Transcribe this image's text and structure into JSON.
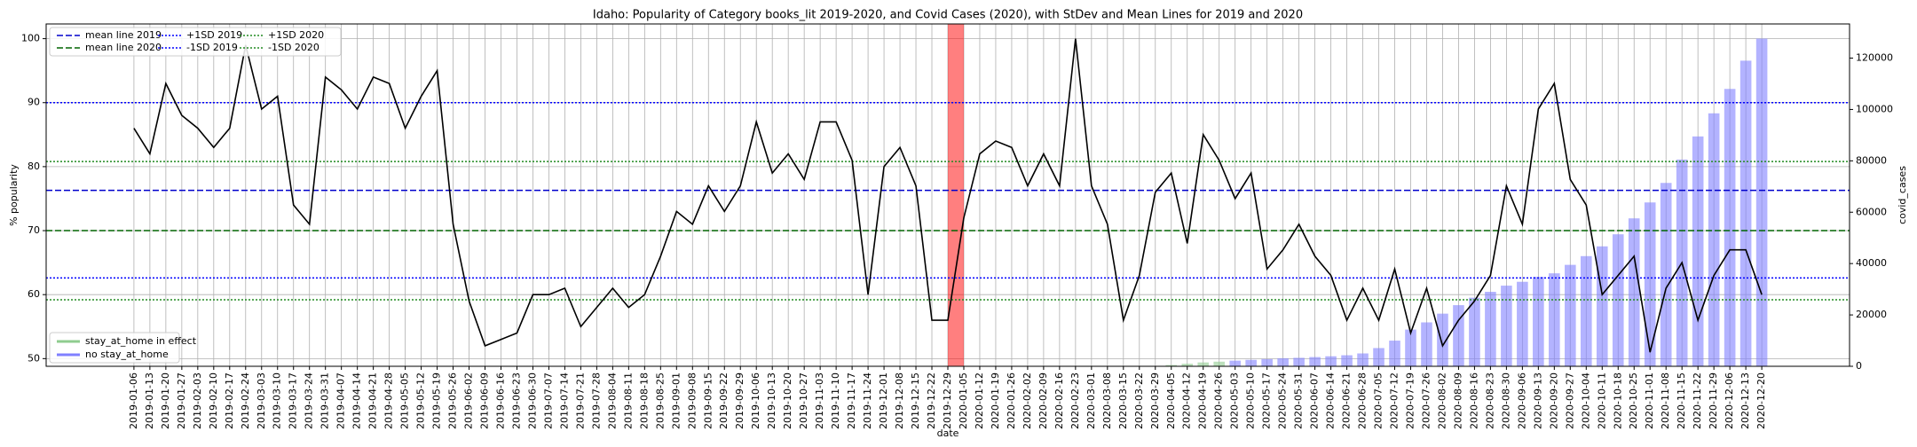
{
  "chart_data": {
    "type": "line",
    "title": "Idaho: Popularity of Category books_lit 2019-2020, and Covid Cases (2020), with StDev and Mean Lines for 2019 and 2020",
    "xlabel": "date",
    "ylabel": "% popularity",
    "y2label": "covid_cases",
    "categories": [
      "2019-01-06",
      "2019-01-13",
      "2019-01-20",
      "2019-01-27",
      "2019-02-03",
      "2019-02-10",
      "2019-02-17",
      "2019-02-24",
      "2019-03-03",
      "2019-03-10",
      "2019-03-17",
      "2019-03-24",
      "2019-03-31",
      "2019-04-07",
      "2019-04-14",
      "2019-04-21",
      "2019-04-28",
      "2019-05-05",
      "2019-05-12",
      "2019-05-19",
      "2019-05-26",
      "2019-06-02",
      "2019-06-09",
      "2019-06-16",
      "2019-06-23",
      "2019-06-30",
      "2019-07-07",
      "2019-07-14",
      "2019-07-21",
      "2019-07-28",
      "2019-08-04",
      "2019-08-11",
      "2019-08-18",
      "2019-08-25",
      "2019-09-01",
      "2019-09-08",
      "2019-09-15",
      "2019-09-22",
      "2019-09-29",
      "2019-10-06",
      "2019-10-13",
      "2019-10-20",
      "2019-10-27",
      "2019-11-03",
      "2019-11-10",
      "2019-11-17",
      "2019-11-24",
      "2019-12-01",
      "2019-12-08",
      "2019-12-15",
      "2019-12-22",
      "2019-12-29",
      "2020-01-05",
      "2020-01-12",
      "2020-01-19",
      "2020-01-26",
      "2020-02-02",
      "2020-02-09",
      "2020-02-16",
      "2020-02-23",
      "2020-03-01",
      "2020-03-08",
      "2020-03-15",
      "2020-03-22",
      "2020-03-29",
      "2020-04-05",
      "2020-04-12",
      "2020-04-19",
      "2020-04-26",
      "2020-05-03",
      "2020-05-10",
      "2020-05-17",
      "2020-05-24",
      "2020-05-31",
      "2020-06-07",
      "2020-06-14",
      "2020-06-21",
      "2020-06-28",
      "2020-07-05",
      "2020-07-12",
      "2020-07-19",
      "2020-07-26",
      "2020-08-02",
      "2020-08-09",
      "2020-08-16",
      "2020-08-23",
      "2020-08-30",
      "2020-09-06",
      "2020-09-13",
      "2020-09-20",
      "2020-09-27",
      "2020-10-04",
      "2020-10-11",
      "2020-10-18",
      "2020-10-25",
      "2020-11-01",
      "2020-11-08",
      "2020-11-15",
      "2020-11-22",
      "2020-11-29",
      "2020-12-06",
      "2020-12-13",
      "2020-12-20"
    ],
    "series": [
      {
        "type": "line",
        "color": "#000000",
        "values": [
          86,
          82,
          93,
          88,
          86,
          83,
          86,
          99,
          89,
          91,
          74,
          71,
          94,
          92,
          89,
          94,
          93,
          86,
          91,
          95,
          71,
          59,
          52,
          53,
          54,
          60,
          60,
          61,
          55,
          58,
          61,
          58,
          60,
          66,
          73,
          71,
          77,
          73,
          77,
          87,
          79,
          82,
          78,
          87,
          87,
          81,
          60,
          80,
          83,
          77,
          56,
          56,
          72,
          82,
          84,
          83,
          77,
          82,
          77,
          100,
          77,
          71,
          56,
          63,
          76,
          79,
          68,
          85,
          81,
          75,
          79,
          64,
          67,
          71,
          66,
          63,
          56,
          61,
          56,
          64,
          54,
          61,
          52,
          56,
          59,
          63,
          77,
          71,
          89,
          93,
          78,
          74,
          60,
          63,
          66,
          51,
          61,
          65,
          56,
          63,
          67,
          67,
          60
        ]
      },
      {
        "type": "bar",
        "axis": "y2",
        "name": "stay_at_home in effect",
        "color": "#8fcc8f",
        "values": [
          null,
          null,
          null,
          null,
          null,
          null,
          null,
          null,
          null,
          null,
          null,
          null,
          null,
          null,
          null,
          null,
          null,
          null,
          null,
          null,
          null,
          null,
          null,
          null,
          null,
          null,
          null,
          null,
          null,
          null,
          null,
          null,
          null,
          null,
          null,
          null,
          null,
          null,
          null,
          null,
          null,
          null,
          null,
          null,
          null,
          null,
          null,
          null,
          null,
          null,
          null,
          null,
          null,
          null,
          null,
          null,
          null,
          null,
          null,
          null,
          null,
          null,
          null,
          null,
          null,
          500,
          1000,
          1500,
          1800,
          null,
          null,
          null,
          null,
          null,
          null,
          null,
          null,
          null,
          null,
          null,
          null,
          null,
          null,
          null,
          null,
          null,
          null,
          null,
          null,
          null,
          null,
          null,
          null,
          null,
          null,
          null,
          null,
          null,
          null,
          null,
          null,
          null,
          null
        ]
      },
      {
        "type": "bar",
        "axis": "y2",
        "name": "no stay_at_home",
        "color": "#8080ff",
        "values": [
          null,
          null,
          null,
          null,
          null,
          null,
          null,
          null,
          null,
          null,
          null,
          null,
          null,
          null,
          null,
          null,
          null,
          null,
          null,
          null,
          null,
          null,
          null,
          null,
          null,
          null,
          null,
          null,
          null,
          null,
          null,
          null,
          null,
          null,
          null,
          null,
          null,
          null,
          null,
          null,
          null,
          null,
          null,
          null,
          null,
          null,
          null,
          null,
          null,
          null,
          null,
          null,
          null,
          null,
          null,
          null,
          null,
          null,
          null,
          null,
          null,
          null,
          null,
          null,
          null,
          null,
          null,
          null,
          null,
          2200,
          2500,
          2800,
          3100,
          3300,
          3600,
          3900,
          4300,
          5000,
          7100,
          10000,
          14300,
          17100,
          20500,
          23800,
          26700,
          29000,
          31400,
          32900,
          34800,
          36200,
          39500,
          42900,
          46700,
          51400,
          57600,
          63800,
          71400,
          80500,
          89500,
          98500,
          108000,
          119000,
          127600
        ]
      }
    ],
    "hlines": [
      {
        "name": "mean line 2019",
        "value": 76.3,
        "color": "#0000cc",
        "style": "dashed"
      },
      {
        "name": "mean line 2020",
        "value": 70,
        "color": "#006400",
        "style": "dashed"
      },
      {
        "name": "+1SD 2019",
        "value": 90,
        "color": "#0000ff",
        "style": "dotted"
      },
      {
        "name": "-1SD 2019",
        "value": 62.6,
        "color": "#0000ff",
        "style": "dotted"
      },
      {
        "name": "+1SD 2020",
        "value": 80.8,
        "color": "#228b22",
        "style": "dotted"
      },
      {
        "name": "-1SD 2020",
        "value": 59.2,
        "color": "#228b22",
        "style": "dotted"
      }
    ],
    "ylim": [
      48.8,
      102.3
    ],
    "yticks": [
      50,
      60,
      70,
      80,
      90,
      100
    ],
    "y2lim": [
      0,
      133300
    ],
    "y2ticks": [
      0,
      20000,
      40000,
      60000,
      80000,
      100000,
      120000
    ],
    "grid": true,
    "legend": "upper left",
    "bar_legend": "lower left"
  }
}
